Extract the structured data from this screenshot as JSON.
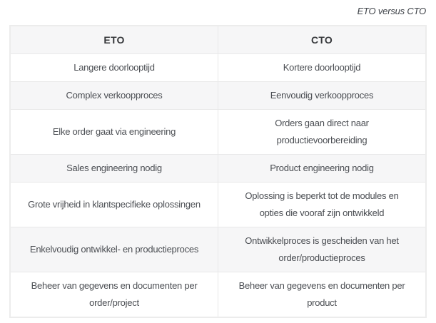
{
  "caption": "ETO versus CTO",
  "table": {
    "headers": [
      "ETO",
      "CTO"
    ],
    "rows": [
      [
        "Langere doorlooptijd",
        "Kortere doorlooptijd"
      ],
      [
        "Complex verkoopproces",
        "Eenvoudig verkoopproces"
      ],
      [
        "Elke order gaat via engineering",
        "Orders gaan direct naar\nproductievoorbereiding"
      ],
      [
        "Sales engineering nodig",
        "Product engineering nodig"
      ],
      [
        "Grote vrijheid in klantspecifieke oplossingen",
        "Oplossing is beperkt tot de modules en\nopties die vooraf zijn ontwikkeld"
      ],
      [
        "Enkelvoudig ontwikkel- en productieproces",
        "Ontwikkelproces is gescheiden van het\norder/productieproces"
      ],
      [
        "Beheer van gegevens en documenten per\norder/project",
        "Beheer van gegevens en documenten per\nproduct"
      ]
    ]
  },
  "colors": {
    "stripe_background": "#f6f6f7",
    "border": "#e9e9e9",
    "body_text": "#4b4e53",
    "header_text": "#36383b"
  }
}
